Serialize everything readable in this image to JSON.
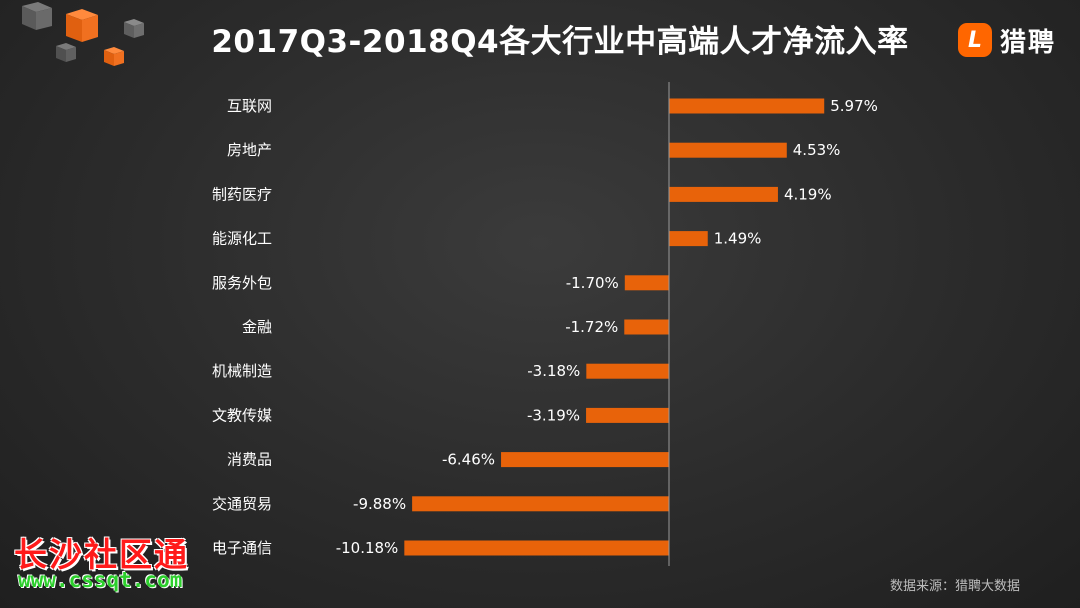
{
  "brand": {
    "name": "猎聘",
    "icon_letter": "L",
    "accent": "#ff6600"
  },
  "source": "数据来源：猎聘大数据",
  "watermark": {
    "text": "长沙社区通",
    "url": "www.cssqt.com"
  },
  "chart_data": {
    "type": "bar",
    "orientation": "horizontal",
    "title": "2017Q3-2018Q4各大行业中高端人才净流入率",
    "categories": [
      "互联网",
      "房地产",
      "制药医疗",
      "能源化工",
      "服务外包",
      "金融",
      "机械制造",
      "文教传媒",
      "消费品",
      "交通贸易",
      "电子通信"
    ],
    "values": [
      5.97,
      4.53,
      4.19,
      1.49,
      -1.7,
      -1.72,
      -3.18,
      -3.19,
      -6.46,
      -9.88,
      -10.18
    ],
    "labels": [
      "5.97%",
      "4.53%",
      "4.19%",
      "1.49%",
      "-1.70%",
      "-1.72%",
      "-3.18%",
      "-3.19%",
      "-6.46%",
      "-9.88%",
      "-10.18%"
    ],
    "xlim": [
      -11,
      8
    ],
    "bar_color": "#e8630a",
    "grid": false,
    "legend": "none"
  }
}
